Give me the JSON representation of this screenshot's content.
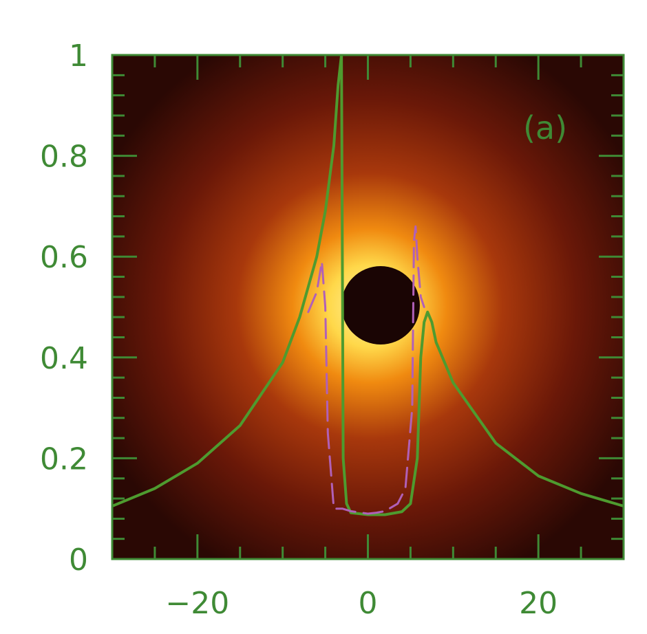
{
  "chart_data": {
    "type": "line",
    "panel_label": "(a)",
    "xlim": [
      -30,
      30
    ],
    "ylim": [
      0,
      1
    ],
    "x_ticks": [
      -20,
      0,
      20
    ],
    "x_tick_labels": [
      "−20",
      "0",
      "20"
    ],
    "y_ticks": [
      0,
      0.2,
      0.4,
      0.6,
      0.8,
      1
    ],
    "y_tick_labels": [
      "0",
      "0.2",
      "0.4",
      "0.6",
      "0.8",
      "1"
    ],
    "background_image": "accretion-disk-glow-with-dark-shadow",
    "colors": {
      "axis": "#3f8a35",
      "solid_line": "#4e9b2f",
      "dashed_line": "#b060b8",
      "glow_core": "#fff2a0",
      "glow_mid": "#f08a10",
      "glow_outer": "#6a1808",
      "background": "#2a0804",
      "shadow": "#1a0504"
    },
    "series": [
      {
        "style": "solid",
        "x": [
          -30,
          -25,
          -20,
          -15,
          -10,
          -8,
          -6,
          -5,
          -4,
          -3.5,
          -3.1,
          -3.0,
          -2.9,
          -2.5,
          -2,
          0,
          2,
          4,
          5,
          5.8,
          6.2,
          6.6,
          7,
          7.5,
          8,
          10,
          15,
          20,
          25,
          30
        ],
        "y": [
          0.105,
          0.14,
          0.19,
          0.265,
          0.39,
          0.48,
          0.6,
          0.69,
          0.82,
          0.94,
          1.0,
          0.6,
          0.2,
          0.11,
          0.092,
          0.088,
          0.088,
          0.094,
          0.11,
          0.2,
          0.4,
          0.47,
          0.49,
          0.47,
          0.43,
          0.35,
          0.23,
          0.165,
          0.13,
          0.105
        ]
      },
      {
        "style": "dashed",
        "x": [
          -7,
          -6,
          -5.4,
          -5,
          -4.7,
          -4,
          -3,
          -2,
          0,
          1,
          2,
          3.5,
          4.4,
          5.2,
          5.4,
          5.6,
          5.8,
          6.2,
          6.6
        ],
        "y": [
          0.49,
          0.53,
          0.59,
          0.5,
          0.25,
          0.1,
          0.1,
          0.095,
          0.09,
          0.092,
          0.095,
          0.11,
          0.14,
          0.3,
          0.63,
          0.66,
          0.6,
          0.52,
          0.5
        ]
      }
    ]
  }
}
